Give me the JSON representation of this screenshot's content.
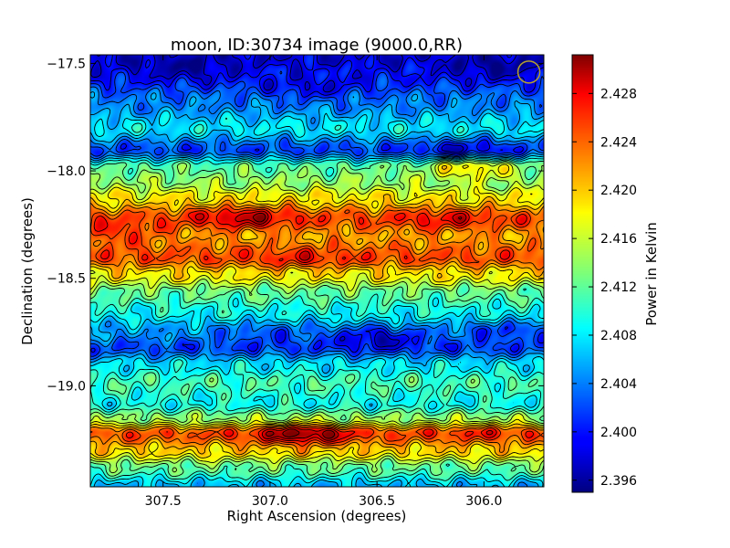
{
  "chart_data": {
    "type": "heatmap",
    "title": "moon, ID:30734 image (9000.0,RR)",
    "xlabel": "Right Ascension (degrees)",
    "ylabel": "Declination (degrees)",
    "colorbar_label": "Power in Kelvin",
    "colormap": "jet",
    "contours": true,
    "x_inverted": true,
    "xlim": [
      307.84,
      305.72
    ],
    "ylim": [
      -19.47,
      -17.46
    ],
    "x_ticks": [
      307.5,
      307.0,
      306.5,
      306.0
    ],
    "x_tick_labels": [
      "307.5",
      "307.0",
      "306.5",
      "306.0"
    ],
    "y_ticks": [
      -17.5,
      -18.0,
      -18.5,
      -19.0
    ],
    "y_tick_labels": [
      "−17.5",
      "−18.0",
      "−18.5",
      "−19.0"
    ],
    "z_range": [
      2.395,
      2.4312
    ],
    "colorbar_ticks": [
      2.396,
      2.4,
      2.404,
      2.408,
      2.412,
      2.416,
      2.42,
      2.424,
      2.428
    ],
    "colorbar_tick_labels": [
      "2.396",
      "2.400",
      "2.404",
      "2.408",
      "2.412",
      "2.416",
      "2.420",
      "2.424",
      "2.428"
    ],
    "dec_band_values": [
      {
        "dec": -17.46,
        "value": 2.398
      },
      {
        "dec": -17.55,
        "value": 2.4
      },
      {
        "dec": -17.68,
        "value": 2.404
      },
      {
        "dec": -17.8,
        "value": 2.408
      },
      {
        "dec": -17.9,
        "value": 2.402
      },
      {
        "dec": -17.98,
        "value": 2.412
      },
      {
        "dec": -18.05,
        "value": 2.414
      },
      {
        "dec": -18.12,
        "value": 2.418
      },
      {
        "dec": -18.22,
        "value": 2.424
      },
      {
        "dec": -18.3,
        "value": 2.421
      },
      {
        "dec": -18.4,
        "value": 2.424
      },
      {
        "dec": -18.48,
        "value": 2.418
      },
      {
        "dec": -18.57,
        "value": 2.412
      },
      {
        "dec": -18.65,
        "value": 2.409
      },
      {
        "dec": -18.75,
        "value": 2.405
      },
      {
        "dec": -18.82,
        "value": 2.402
      },
      {
        "dec": -18.9,
        "value": 2.408
      },
      {
        "dec": -18.98,
        "value": 2.411
      },
      {
        "dec": -19.08,
        "value": 2.409
      },
      {
        "dec": -19.15,
        "value": 2.414
      },
      {
        "dec": -19.22,
        "value": 2.424
      },
      {
        "dec": -19.3,
        "value": 2.419
      },
      {
        "dec": -19.38,
        "value": 2.412
      },
      {
        "dec": -19.47,
        "value": 2.406
      }
    ],
    "hotspots": [
      {
        "ra": 307.12,
        "dec": -18.21,
        "value": 2.429
      },
      {
        "ra": 306.18,
        "dec": -18.22,
        "value": 2.427
      },
      {
        "ra": 306.85,
        "dec": -19.22,
        "value": 2.431
      },
      {
        "ra": 307.72,
        "dec": -18.29,
        "value": 2.425
      },
      {
        "ra": 306.86,
        "dec": -18.41,
        "value": 2.426
      },
      {
        "ra": 306.06,
        "dec": -17.98,
        "value": 2.419
      },
      {
        "ra": 306.02,
        "dec": -19.2,
        "value": 2.424
      }
    ],
    "coldspots": [
      {
        "ra": 306.5,
        "dec": -18.77,
        "value": 2.398
      },
      {
        "ra": 306.1,
        "dec": -17.9,
        "value": 2.398
      },
      {
        "ra": 307.4,
        "dec": -17.52,
        "value": 2.396
      },
      {
        "ra": 305.95,
        "dec": -17.52,
        "value": 2.396
      },
      {
        "ra": 306.8,
        "dec": -17.62,
        "value": 2.399
      },
      {
        "ra": 307.02,
        "dec": -18.75,
        "value": 2.402
      },
      {
        "ra": 305.9,
        "dec": -18.74,
        "value": 2.401
      }
    ],
    "beam_marker": {
      "ra": 305.79,
      "dec": -17.54
    }
  }
}
